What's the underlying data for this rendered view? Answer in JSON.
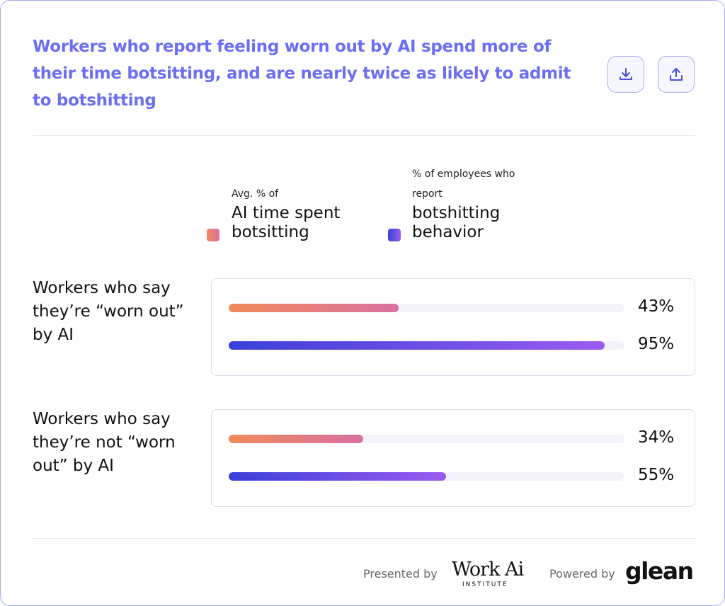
{
  "chart_data": {
    "type": "bar",
    "orientation": "horizontal",
    "title": "Workers who report feeling worn out by AI spend more of their time botsitting, and are nearly twice as likely to admit to botshitting",
    "categories": [
      "Workers who say they’re “worn out” by AI",
      "Workers who say they’re not “worn out” by AI"
    ],
    "xlim": [
      0,
      100
    ],
    "series": [
      {
        "name_prefix": "Avg. % of",
        "name": "AI time spent botsitting",
        "colors": [
          "#f08a5a",
          "#d970a0"
        ],
        "values": [
          43,
          34
        ],
        "value_labels": [
          "43%",
          "34%"
        ]
      },
      {
        "name_prefix": "% of employees who report",
        "name": "botshitting behavior",
        "colors": [
          "#3a3fd9",
          "#9b5cf0"
        ],
        "values": [
          95,
          55
        ],
        "value_labels": [
          "95%",
          "55%"
        ]
      }
    ]
  },
  "footer": {
    "presented_by": "Presented by",
    "logo_main": "Work Ai",
    "logo_sub": "INSTITUTE",
    "powered_by": "Powered by",
    "powered_logo": "glean"
  }
}
